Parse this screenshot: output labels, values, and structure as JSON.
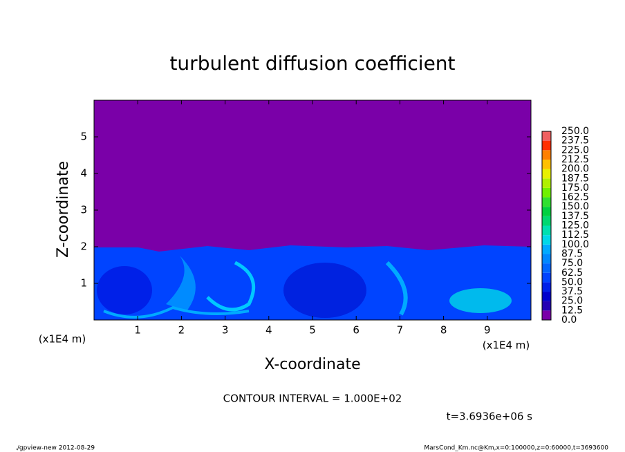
{
  "chart_data": {
    "type": "heatmap",
    "title": "turbulent diffusion coefficient",
    "x_label": "X-coordinate",
    "y_label": "Z-coordinate",
    "x_unit": "(x1E4 m)",
    "y_unit": "(x1E4 m)",
    "xlim": [
      0,
      10
    ],
    "xticks": [
      1,
      2,
      3,
      4,
      5,
      6,
      7,
      8,
      9
    ],
    "ylim": [
      0,
      6
    ],
    "yticks": [
      1,
      2,
      3,
      4,
      5
    ],
    "levels": [
      {
        "value": 0,
        "label": "0.0"
      },
      {
        "value": 12.5,
        "label": "12.5"
      },
      {
        "value": 25,
        "label": "25.0"
      },
      {
        "value": 37.5,
        "label": "37.5"
      },
      {
        "value": 50,
        "label": "50.0"
      },
      {
        "value": 62.5,
        "label": "62.5"
      },
      {
        "value": 75,
        "label": "75.0"
      },
      {
        "value": 87.5,
        "label": "87.5"
      },
      {
        "value": 100,
        "label": "100.0"
      },
      {
        "value": 112.5,
        "label": "112.5"
      },
      {
        "value": 125,
        "label": "125.0"
      },
      {
        "value": 137.5,
        "label": "137.5"
      },
      {
        "value": 150,
        "label": "150.0"
      },
      {
        "value": 162.5,
        "label": "162.5"
      },
      {
        "value": 175,
        "label": "175.0"
      },
      {
        "value": 187.5,
        "label": "187.5"
      },
      {
        "value": 200,
        "label": "200.0"
      },
      {
        "value": 212.5,
        "label": "212.5"
      },
      {
        "value": 225,
        "label": "225.0"
      },
      {
        "value": 237.5,
        "label": "237.5"
      },
      {
        "value": 250,
        "label": "250.0"
      }
    ],
    "level_colors": [
      "#7a00a8",
      "#2400b4",
      "#0000cc",
      "#0020e8",
      "#0044ff",
      "#0066ff",
      "#0088ff",
      "#00aaff",
      "#00d8e8",
      "#00e0b0",
      "#00d870",
      "#00d040",
      "#30e030",
      "#70f000",
      "#b0f000",
      "#e8f000",
      "#ffc000",
      "#ff8000",
      "#ff3000",
      "#f06060"
    ],
    "contour_note": "CONTOUR INTERVAL = 1.000E+02",
    "time_label": "t=3.6936e+06 s",
    "footer_left": "./gpview-new  2012-08-29",
    "footer_right": "MarsCond_Km.nc@Km,x=0:100000,z=0:60000,t=3693600"
  }
}
